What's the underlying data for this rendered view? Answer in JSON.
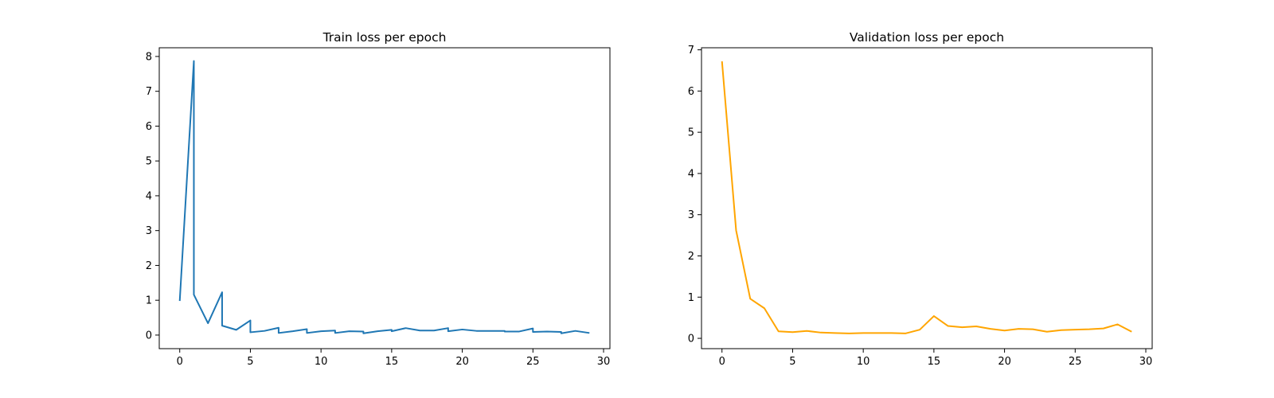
{
  "chart_data": [
    {
      "type": "line",
      "title": "Train loss per epoch",
      "xlabel": "",
      "ylabel": "",
      "xlim": [
        -1.45,
        30.45
      ],
      "ylim": [
        -0.39,
        8.25
      ],
      "xticks": [
        0,
        5,
        10,
        15,
        20,
        25,
        30
      ],
      "yticks": [
        0,
        1,
        2,
        3,
        4,
        5,
        6,
        7,
        8
      ],
      "grid": false,
      "series": [
        {
          "color": "#1f77b4",
          "x": [
            0,
            1,
            1,
            2,
            3,
            3,
            4,
            5,
            5,
            6,
            7,
            7,
            8,
            9,
            9,
            10,
            11,
            11,
            12,
            13,
            13,
            14,
            15,
            15,
            16,
            17,
            18,
            19,
            19,
            20,
            21,
            22,
            23,
            23,
            24,
            25,
            25,
            26,
            27,
            27,
            28,
            29
          ],
          "y": [
            0.98,
            7.87,
            1.16,
            0.34,
            1.23,
            0.27,
            0.15,
            0.42,
            0.08,
            0.12,
            0.21,
            0.06,
            0.11,
            0.17,
            0.06,
            0.11,
            0.13,
            0.06,
            0.11,
            0.1,
            0.05,
            0.11,
            0.15,
            0.11,
            0.2,
            0.13,
            0.13,
            0.2,
            0.11,
            0.16,
            0.12,
            0.12,
            0.12,
            0.1,
            0.1,
            0.19,
            0.09,
            0.1,
            0.09,
            0.05,
            0.12,
            0.06
          ]
        }
      ]
    },
    {
      "type": "line",
      "title": "Validation loss per epoch",
      "xlabel": "",
      "ylabel": "",
      "xlim": [
        -1.45,
        30.45
      ],
      "ylim": [
        -0.25,
        7.05
      ],
      "xticks": [
        0,
        5,
        10,
        15,
        20,
        25,
        30
      ],
      "yticks": [
        0,
        1,
        2,
        3,
        4,
        5,
        6,
        7
      ],
      "grid": false,
      "series": [
        {
          "color": "#ffa500",
          "x": [
            0,
            1,
            2,
            3,
            4,
            5,
            6,
            7,
            8,
            9,
            10,
            11,
            12,
            13,
            14,
            15,
            16,
            17,
            18,
            19,
            20,
            21,
            22,
            23,
            24,
            25,
            26,
            27,
            28,
            29
          ],
          "y": [
            6.72,
            2.62,
            0.96,
            0.73,
            0.17,
            0.15,
            0.18,
            0.14,
            0.13,
            0.12,
            0.13,
            0.13,
            0.13,
            0.12,
            0.21,
            0.54,
            0.3,
            0.27,
            0.29,
            0.23,
            0.19,
            0.23,
            0.22,
            0.16,
            0.2,
            0.21,
            0.22,
            0.24,
            0.34,
            0.16
          ]
        }
      ]
    }
  ]
}
